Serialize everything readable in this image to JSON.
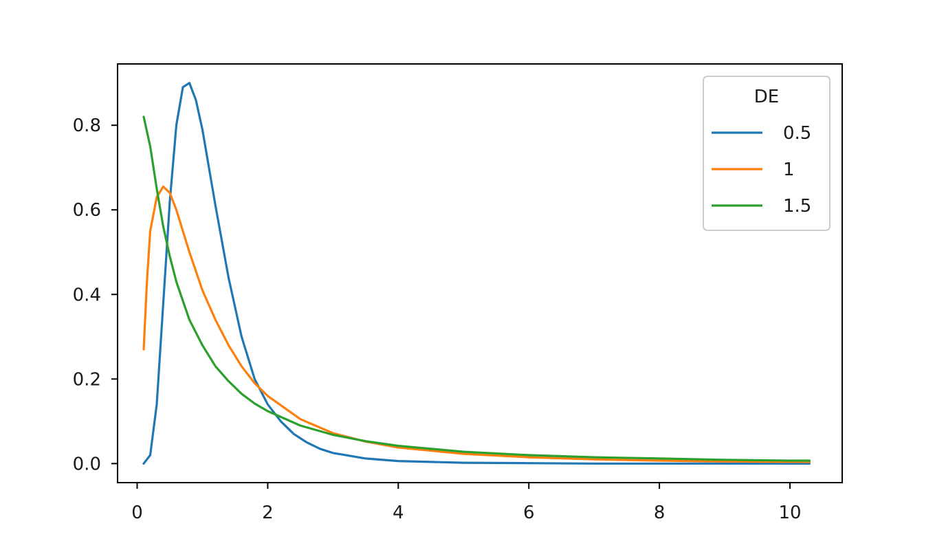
{
  "chart_data": {
    "type": "line",
    "title": "",
    "xlabel": "",
    "ylabel": "",
    "xlim": [
      -0.3,
      10.8
    ],
    "ylim": [
      -0.045,
      0.945
    ],
    "xticks": [
      0,
      2,
      4,
      6,
      8,
      10
    ],
    "xtick_labels": [
      "0",
      "2",
      "4",
      "6",
      "8",
      "10"
    ],
    "yticks": [
      0.0,
      0.2,
      0.4,
      0.6,
      0.8
    ],
    "ytick_labels": [
      "0.0",
      "0.2",
      "0.4",
      "0.6",
      "0.8"
    ],
    "grid": false,
    "legend": {
      "title": "DE",
      "placement": "top-right"
    },
    "series": [
      {
        "name": "0.5",
        "color": "#1f77b4",
        "x": [
          0.1,
          0.2,
          0.3,
          0.4,
          0.5,
          0.6,
          0.7,
          0.8,
          0.9,
          1.0,
          1.2,
          1.4,
          1.6,
          1.8,
          2.0,
          2.2,
          2.4,
          2.6,
          2.8,
          3.0,
          3.5,
          4.0,
          5.0,
          6.0,
          7.0,
          8.0,
          9.0,
          10.0,
          10.3
        ],
        "y": [
          0.0,
          0.02,
          0.14,
          0.38,
          0.62,
          0.8,
          0.89,
          0.9,
          0.86,
          0.79,
          0.61,
          0.44,
          0.3,
          0.2,
          0.14,
          0.1,
          0.07,
          0.05,
          0.035,
          0.025,
          0.012,
          0.006,
          0.002,
          0.001,
          0.0,
          0.0,
          0.0,
          0.0,
          0.0
        ]
      },
      {
        "name": "1",
        "color": "#ff7f0e",
        "x": [
          0.1,
          0.15,
          0.2,
          0.3,
          0.4,
          0.5,
          0.6,
          0.7,
          0.8,
          1.0,
          1.2,
          1.4,
          1.6,
          1.8,
          2.0,
          2.5,
          3.0,
          3.5,
          4.0,
          5.0,
          6.0,
          7.0,
          8.0,
          9.0,
          10.0,
          10.3
        ],
        "y": [
          0.27,
          0.43,
          0.55,
          0.63,
          0.655,
          0.64,
          0.6,
          0.55,
          0.5,
          0.41,
          0.34,
          0.28,
          0.23,
          0.19,
          0.16,
          0.105,
          0.072,
          0.052,
          0.038,
          0.023,
          0.015,
          0.01,
          0.007,
          0.005,
          0.004,
          0.004
        ]
      },
      {
        "name": "1.5",
        "color": "#2ca02c",
        "x": [
          0.1,
          0.2,
          0.3,
          0.4,
          0.5,
          0.6,
          0.8,
          1.0,
          1.2,
          1.4,
          1.6,
          1.8,
          2.0,
          2.5,
          3.0,
          3.5,
          4.0,
          5.0,
          6.0,
          7.0,
          8.0,
          9.0,
          10.0,
          10.3
        ],
        "y": [
          0.82,
          0.75,
          0.65,
          0.56,
          0.49,
          0.43,
          0.34,
          0.28,
          0.23,
          0.195,
          0.165,
          0.142,
          0.124,
          0.09,
          0.068,
          0.053,
          0.042,
          0.028,
          0.02,
          0.015,
          0.012,
          0.009,
          0.007,
          0.007
        ]
      }
    ]
  }
}
